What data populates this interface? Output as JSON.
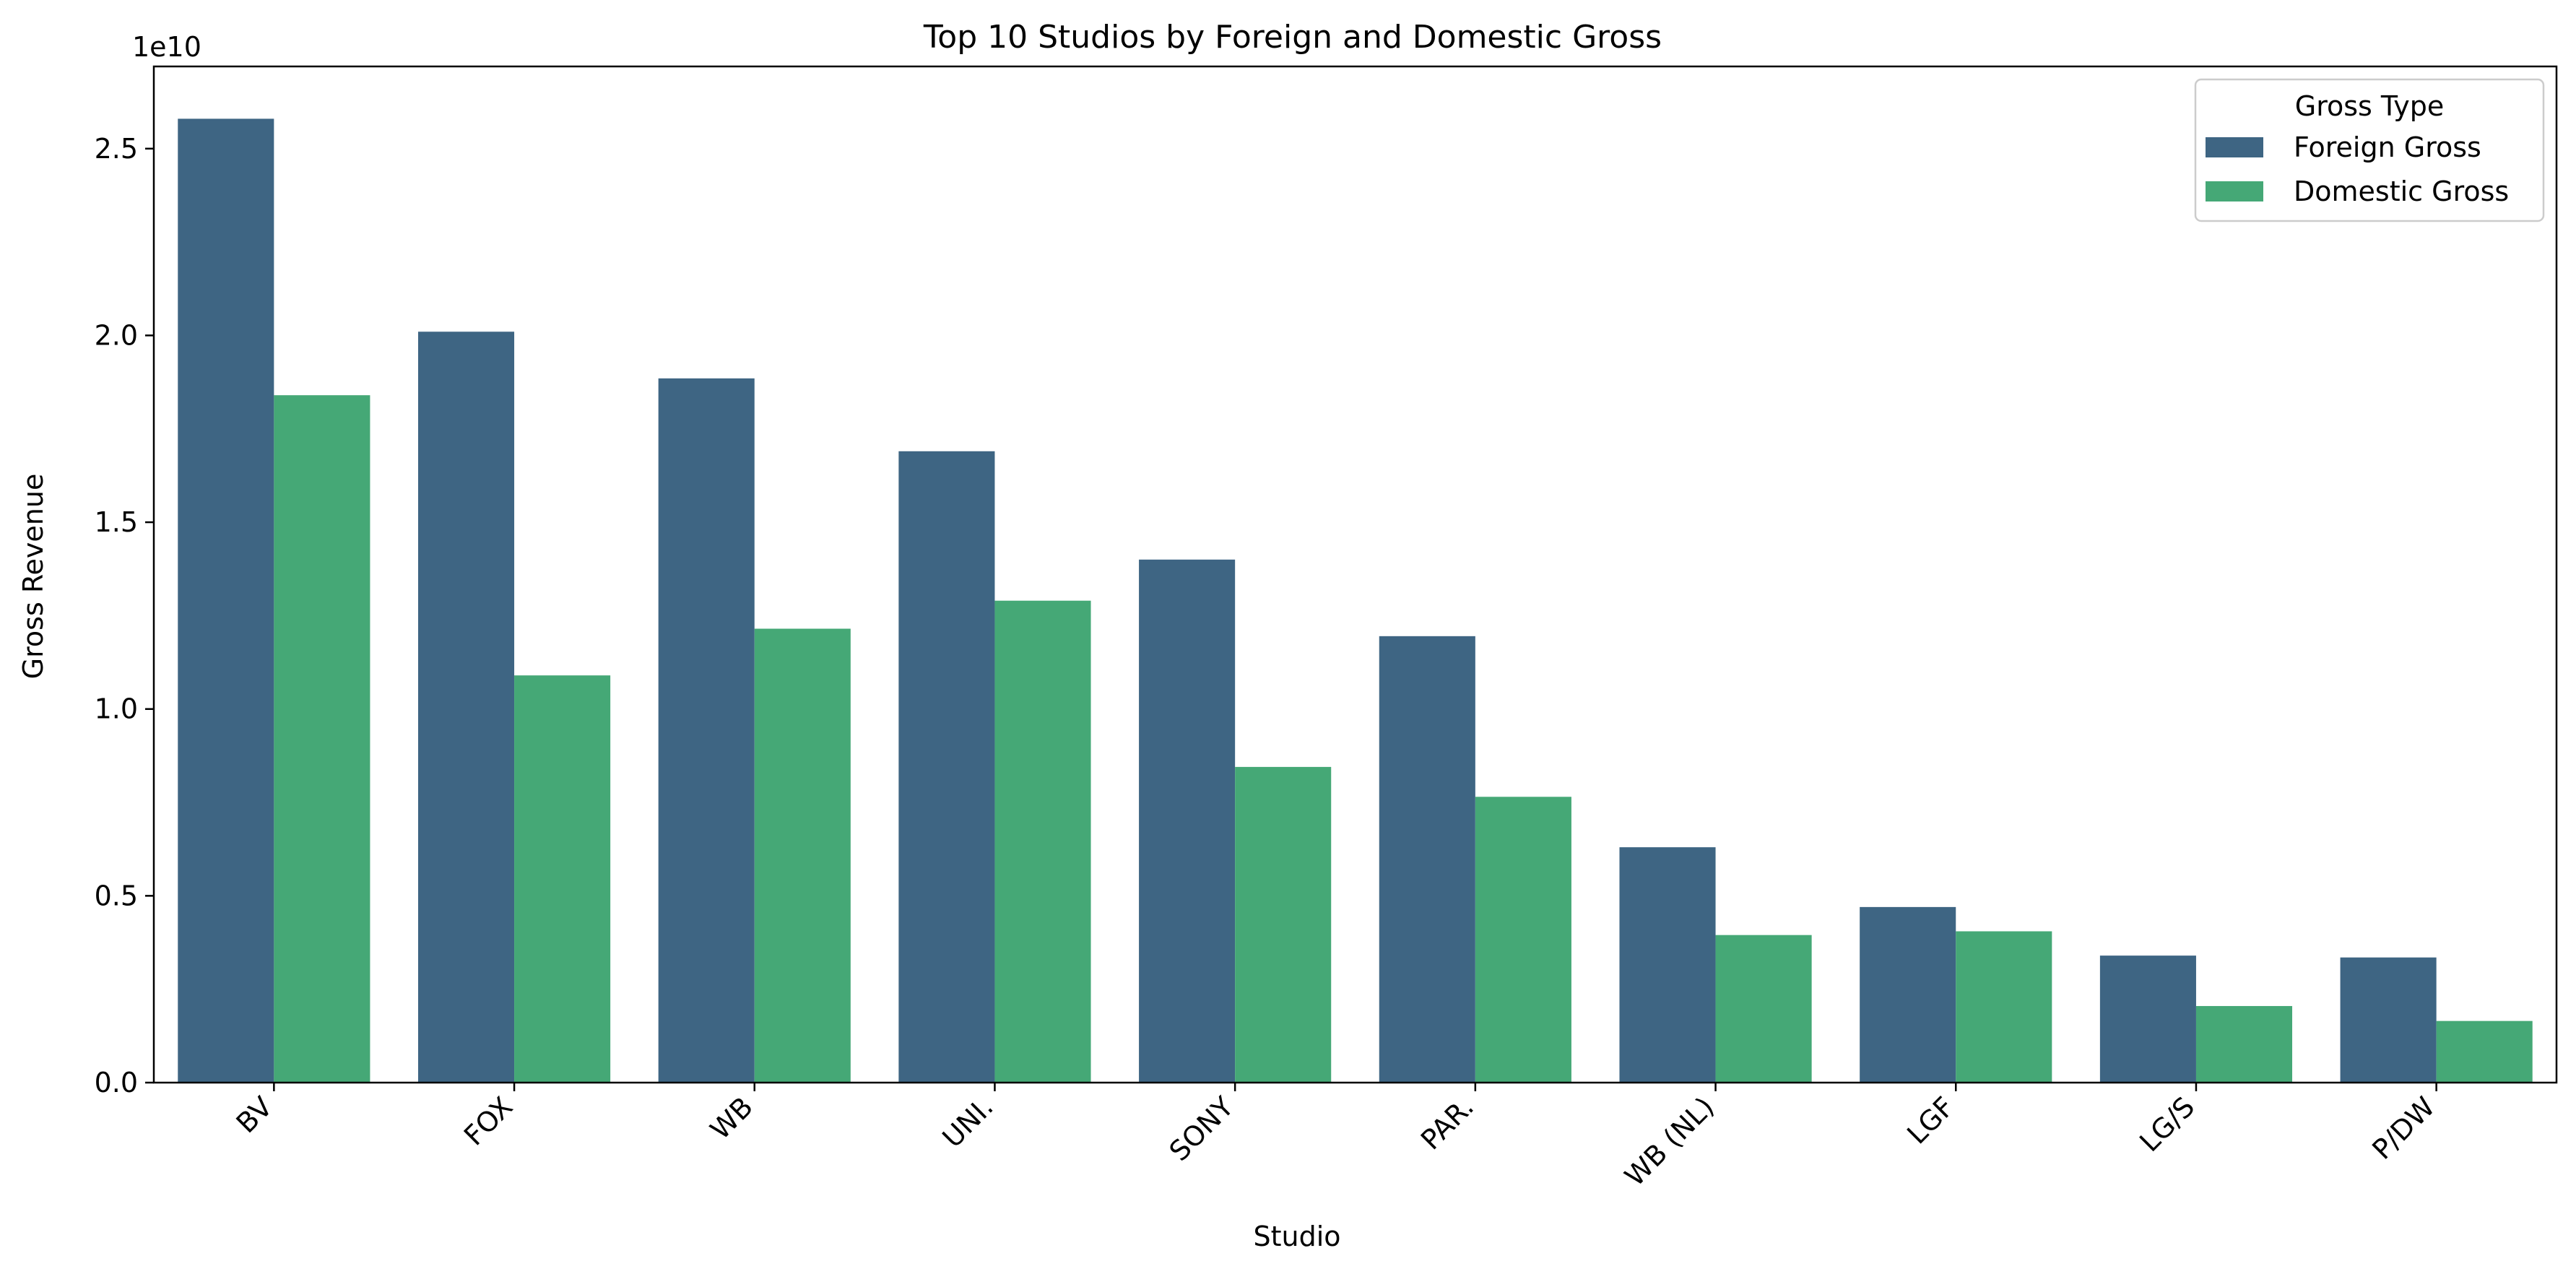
{
  "chart_data": {
    "type": "bar",
    "title": "Top 10 Studios by Foreign and Domestic Gross",
    "xlabel": "Studio",
    "ylabel": "Gross Revenue",
    "y_offset_label": "1e10",
    "categories": [
      "BV",
      "FOX",
      "WB",
      "UNI.",
      "SONY",
      "PAR.",
      "WB (NL)",
      "LGF",
      "LG/S",
      "P/DW"
    ],
    "series": [
      {
        "name": "Foreign Gross",
        "color": "#3e6583",
        "values": [
          25800000000,
          20100000000,
          18850000000,
          16900000000,
          14000000000,
          11950000000,
          6300000000,
          4700000000,
          3400000000,
          3350000000
        ]
      },
      {
        "name": "Domestic Gross",
        "color": "#45a876",
        "values": [
          18400000000,
          10900000000,
          12150000000,
          12900000000,
          8450000000,
          7650000000,
          3950000000,
          4050000000,
          2050000000,
          1650000000
        ]
      }
    ],
    "ylim": [
      0,
      27200000000
    ],
    "yticks": [
      0,
      5000000000,
      10000000000,
      15000000000,
      20000000000,
      25000000000
    ],
    "ytick_labels": [
      "0.0",
      "0.5",
      "1.0",
      "1.5",
      "2.0",
      "2.5"
    ],
    "grid": false,
    "legend": {
      "title": "Gross Type",
      "position": "top-right"
    }
  }
}
